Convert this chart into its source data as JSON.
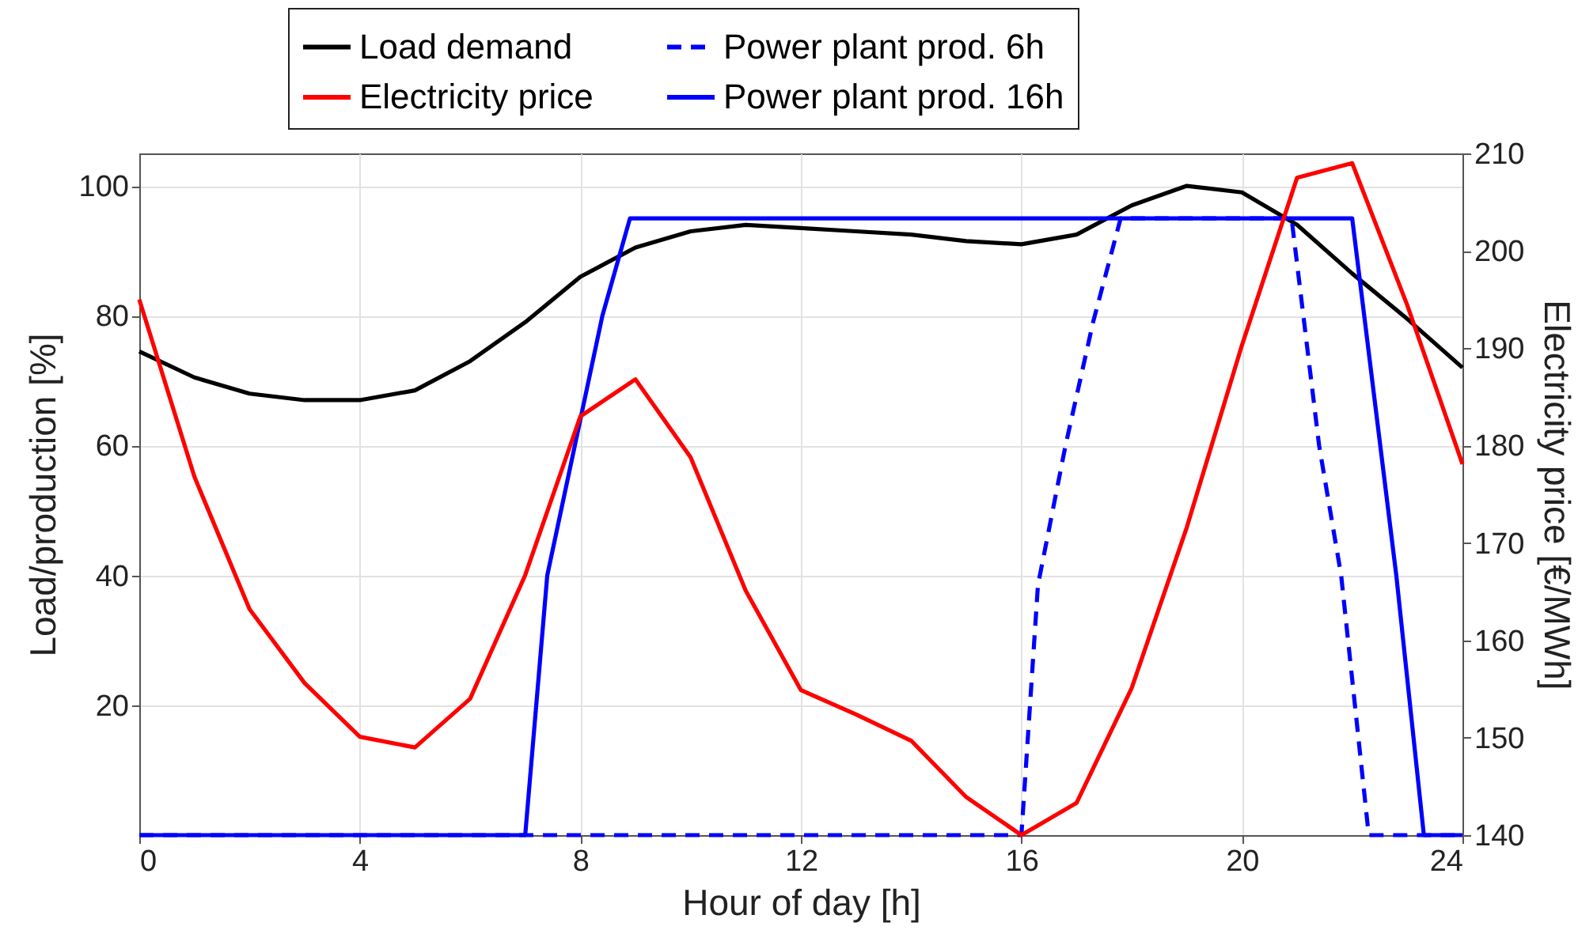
{
  "chart_data": {
    "type": "line",
    "xlabel": "Hour of day [h]",
    "ylabel": "Load/production [%]",
    "y2label": "Electricity price [€/MWh]",
    "x": [
      0,
      1,
      2,
      3,
      4,
      5,
      6,
      7,
      8,
      9,
      10,
      11,
      12,
      13,
      14,
      15,
      16,
      17,
      18,
      19,
      20,
      21,
      22,
      23,
      24
    ],
    "series": [
      {
        "name": "Load demand",
        "color": "#000000",
        "values": [
          74.5,
          70.5,
          68,
          67,
          67,
          68.5,
          73,
          79,
          86,
          90.5,
          93,
          94,
          93.5,
          93,
          92.5,
          91.5,
          91,
          92.5,
          97,
          100,
          99,
          94,
          86.5,
          79.5,
          72
        ]
      },
      {
        "name": "Electricity price",
        "color": "#ff0000",
        "axis": "y2",
        "values": [
          195,
          176.8,
          163.2,
          155.6,
          150.1,
          149,
          154,
          166.7,
          183,
          186.8,
          178.8,
          165.1,
          154.9,
          152.4,
          149.7,
          143.9,
          140,
          143.3,
          155.1,
          171.6,
          190.3,
          207.5,
          209,
          194.4,
          178.1
        ]
      },
      {
        "name": "Power plant prod. 6h",
        "color": "#0000ff",
        "line_style": "dashed",
        "x": [
          0,
          16,
          16.3,
          16.8,
          17.3,
          17.8,
          20.9,
          21.4,
          21.8,
          22.3,
          24
        ],
        "values": [
          0,
          0,
          38.5,
          60,
          79,
          95,
          95,
          60,
          40,
          0,
          0
        ]
      },
      {
        "name": "Power plant prod. 16h",
        "color": "#0000ff",
        "line_style": "solid",
        "x": [
          0,
          7,
          7.4,
          8.4,
          8.9,
          22,
          22.8,
          23.3,
          24
        ],
        "values": [
          0,
          0,
          40,
          80,
          95,
          95,
          40,
          0,
          0
        ]
      }
    ],
    "xlim": [
      0,
      24
    ],
    "xticks": [
      0,
      4,
      8,
      12,
      16,
      20,
      24
    ],
    "ylim": [
      0,
      105
    ],
    "yticks": [
      20,
      40,
      60,
      80,
      100
    ],
    "y2lim": [
      140,
      210
    ],
    "y2ticks": [
      140,
      150,
      160,
      170,
      180,
      190,
      200,
      210
    ],
    "grid": true,
    "legend": "top",
    "marker": "none"
  }
}
